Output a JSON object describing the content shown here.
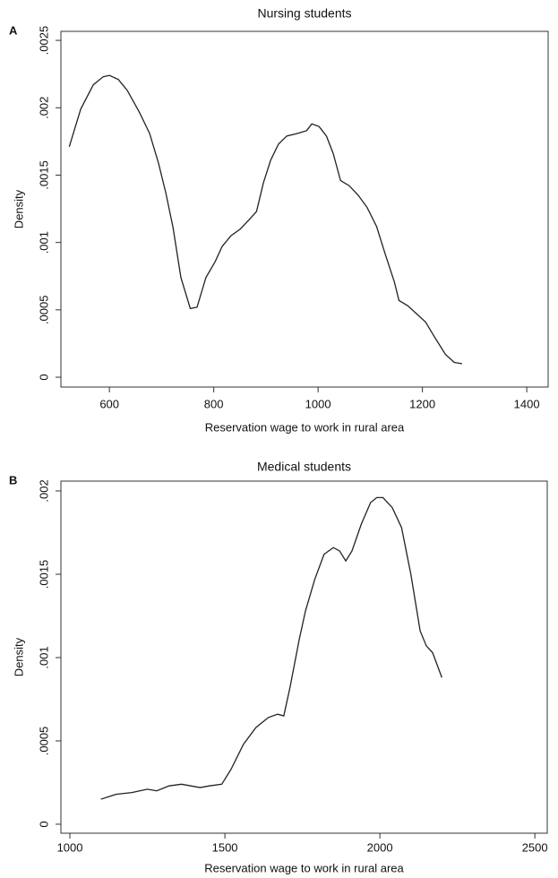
{
  "chart_data": [
    {
      "type": "line",
      "panel": "A",
      "title": "Nursing students",
      "x_label": "Reservation wage to work in rural area",
      "y_label": "Density",
      "xlim": [
        507,
        1441
      ],
      "ylim": [
        -7.3e-05,
        0.002567
      ],
      "xticks": [
        600,
        800,
        1000,
        1200,
        1400
      ],
      "yticks": [
        0,
        {
          "value": 0.0005,
          "label": ".0005"
        },
        {
          "value": 0.001,
          "label": ".001"
        },
        {
          "value": 0.0015,
          "label": ".0015"
        },
        {
          "value": 0.002,
          "label": ".002"
        },
        {
          "value": 0.0025,
          "label": ".0025"
        }
      ],
      "x": [
        523,
        545,
        569,
        588,
        600,
        617,
        634,
        657,
        677,
        694,
        708,
        722,
        737,
        755,
        768,
        785,
        803,
        816,
        833,
        851,
        868,
        882,
        895,
        909,
        924,
        940,
        961,
        978,
        988,
        1002,
        1016,
        1029,
        1043,
        1060,
        1077,
        1094,
        1112,
        1129,
        1146,
        1155,
        1172,
        1189,
        1206,
        1223,
        1244,
        1261,
        1276
      ],
      "series": [
        {
          "name": "Density",
          "color": "#222222",
          "values": [
            0.00171,
            0.00199,
            0.00217,
            0.00223,
            0.00224,
            0.00221,
            0.00213,
            0.00197,
            0.00181,
            0.00159,
            0.00137,
            0.00111,
            0.00074,
            0.00051,
            0.00052,
            0.00074,
            0.00086,
            0.00097,
            0.00105,
            0.0011,
            0.00117,
            0.00123,
            0.00144,
            0.00161,
            0.00173,
            0.00179,
            0.00181,
            0.00183,
            0.00188,
            0.00186,
            0.00179,
            0.00166,
            0.00146,
            0.00142,
            0.00135,
            0.00126,
            0.00112,
            0.00091,
            0.00071,
            0.00057,
            0.00053,
            0.00047,
            0.00041,
            0.0003,
            0.00017,
            0.00011,
            0.0001
          ]
        }
      ]
    },
    {
      "type": "line",
      "panel": "B",
      "title": "Medical students",
      "x_label": "Reservation wage to work in rural area",
      "y_label": "Density",
      "xlim": [
        971,
        2540
      ],
      "ylim": [
        -5.4e-05,
        0.002059
      ],
      "xticks": [
        1000,
        1500,
        2000,
        2500
      ],
      "yticks": [
        0,
        {
          "value": 0.0005,
          "label": ".0005"
        },
        {
          "value": 0.001,
          "label": ".001"
        },
        {
          "value": 0.0015,
          "label": ".0015"
        },
        {
          "value": 0.002,
          "label": ".002"
        }
      ],
      "x": [
        1100,
        1150,
        1200,
        1250,
        1280,
        1320,
        1360,
        1420,
        1450,
        1490,
        1520,
        1560,
        1600,
        1640,
        1670,
        1690,
        1710,
        1740,
        1760,
        1790,
        1820,
        1850,
        1870,
        1890,
        1910,
        1940,
        1970,
        1990,
        2010,
        2040,
        2070,
        2100,
        2130,
        2150,
        2170,
        2200
      ],
      "series": [
        {
          "name": "Density",
          "color": "#222222",
          "values": [
            0.00015,
            0.00018,
            0.00019,
            0.00021,
            0.0002,
            0.00023,
            0.00024,
            0.00022,
            0.00023,
            0.00024,
            0.00033,
            0.00048,
            0.00058,
            0.00064,
            0.00066,
            0.00065,
            0.00082,
            0.00111,
            0.00128,
            0.00147,
            0.00162,
            0.00166,
            0.00164,
            0.00158,
            0.00164,
            0.0018,
            0.00193,
            0.00196,
            0.00196,
            0.0019,
            0.00178,
            0.0015,
            0.00116,
            0.00107,
            0.00103,
            0.00088
          ]
        }
      ]
    }
  ]
}
